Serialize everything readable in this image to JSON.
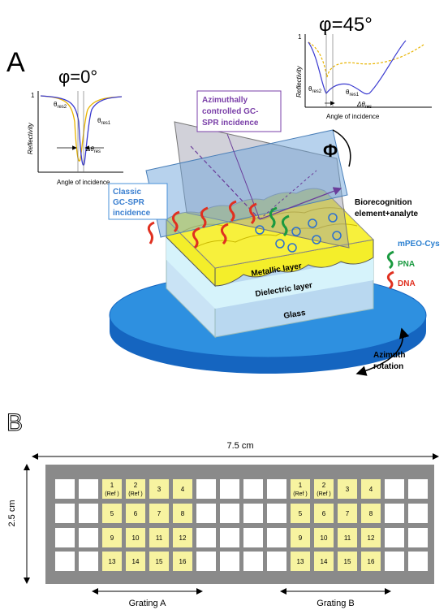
{
  "panel_a": {
    "label": "A",
    "inset_left": {
      "title": "φ=0°",
      "y_max": "1",
      "y_label": "Reflectivity",
      "x_label": "Angle of incidence",
      "theta_res2": {
        "symbol": "θ",
        "sub": "res2"
      },
      "theta_res1": {
        "symbol": "θ",
        "sub": "res1"
      },
      "delta": {
        "symbol": "Δθ",
        "sub": "res"
      }
    },
    "inset_right": {
      "title": "φ=45°",
      "y_max": "1",
      "y_label": "Reflectivity",
      "x_label": "Angle of incidence",
      "theta_res2": {
        "symbol": "θ",
        "sub": "res2"
      },
      "theta_res1": {
        "symbol": "θ",
        "sub": "res1"
      },
      "delta": {
        "symbol": "Δθ",
        "sub": "res"
      }
    },
    "azimuthal_box": [
      "Azimuthally",
      "controlled GC-",
      "SPR incidence"
    ],
    "classic_box": [
      "Classic",
      "GC-SPR",
      "incidence"
    ],
    "phi": "Φ",
    "biorecognition": [
      "Biorecognition",
      "element+analyte"
    ],
    "legend": {
      "mpeo": "mPEO-Cys",
      "pna": "PNA",
      "dna": "DNA"
    },
    "layers": {
      "metallic": "Metallic layer",
      "dielectric": "Dielectric layer",
      "glass": "Glass"
    },
    "rotation": [
      "Azimuth",
      "rotation"
    ]
  },
  "panel_b": {
    "label": "B",
    "width": "7.5 cm",
    "height": "2.5 cm",
    "gratings": [
      {
        "name": "Grating A",
        "refs": [
          "(Ref )",
          "(Ref )"
        ],
        "wells": [
          "1",
          "2",
          "3",
          "4",
          "5",
          "6",
          "7",
          "8",
          "9",
          "10",
          "11",
          "12",
          "13",
          "14",
          "15",
          "16"
        ]
      },
      {
        "name": "Grating B",
        "refs": [
          "(Ref )",
          "(Ref )"
        ],
        "wells": [
          "1",
          "2",
          "3",
          "4",
          "5",
          "6",
          "7",
          "8",
          "9",
          "10",
          "11",
          "12",
          "13",
          "14",
          "15",
          "16"
        ]
      }
    ]
  }
}
